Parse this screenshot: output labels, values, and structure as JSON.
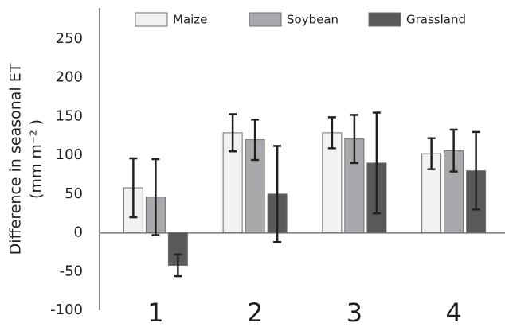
{
  "chart_data": {
    "type": "bar",
    "ylabel": [
      "Difference in seasonal ET",
      "(mm m⁻² )"
    ],
    "categories": [
      "1",
      "2",
      "3",
      "4"
    ],
    "series": [
      {
        "name": "Maize",
        "color": "#f1f1f2",
        "values": [
          58,
          129,
          129,
          102
        ],
        "errors": [
          38,
          24,
          20,
          20
        ]
      },
      {
        "name": "Soybean",
        "color": "#a7a9ac",
        "values": [
          46,
          120,
          121,
          106
        ],
        "errors": [
          49,
          26,
          31,
          27
        ]
      },
      {
        "name": "Grassland",
        "color": "#58595b",
        "values": [
          -42,
          50,
          90,
          80
        ],
        "errors": [
          14,
          62,
          65,
          50
        ]
      }
    ],
    "ylim": [
      -100,
      290
    ],
    "yticks": [
      -100,
      -50,
      0,
      50,
      100,
      150,
      200,
      250
    ],
    "grid": false
  }
}
